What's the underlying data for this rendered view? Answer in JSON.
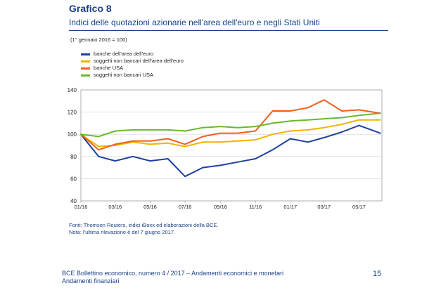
{
  "header": {
    "title": "Grafico 8",
    "subtitle": "Indici delle quotazioni azionarie nell'area dell'euro e negli Stati Uniti",
    "unit_note": "(1° gennaio 2016 = 100)"
  },
  "chart_data": {
    "type": "line",
    "x": [
      "2016-01-01",
      "2016-02-01",
      "2016-03-01",
      "2016-04-01",
      "2016-05-01",
      "2016-06-01",
      "2016-07-01",
      "2016-08-01",
      "2016-09-01",
      "2016-10-01",
      "2016-11-01",
      "2016-12-01",
      "2017-01-01",
      "2017-02-01",
      "2017-03-01",
      "2017-04-01",
      "2017-05-01",
      "2017-06-07"
    ],
    "x_tick_labels": [
      "01/16",
      "03/16",
      "05/16",
      "07/16",
      "09/16",
      "11/16",
      "01/17",
      "03/17",
      "05/17"
    ],
    "ylim": [
      40,
      140
    ],
    "y_ticks": [
      40,
      60,
      80,
      100,
      120,
      140
    ],
    "legend_position": "top-left",
    "series": [
      {
        "name": "banche dell'area dell'euro",
        "color": "#1f3fa0",
        "values": [
          100,
          80,
          76,
          80,
          76,
          78,
          62,
          70,
          72,
          75,
          78,
          86,
          96,
          93,
          97,
          102,
          108,
          101
        ]
      },
      {
        "name": "soggetti non bancari dell'area dell'euro",
        "color": "#f3b300",
        "values": [
          100,
          89,
          90,
          93,
          91,
          92,
          89,
          93,
          93,
          94,
          95,
          100,
          103,
          104,
          106,
          109,
          113,
          113
        ]
      },
      {
        "name": "banche USA",
        "color": "#f0601e",
        "values": [
          100,
          86,
          91,
          94,
          94,
          96,
          91,
          98,
          101,
          101,
          103,
          121,
          121,
          124,
          131,
          121,
          122,
          119
        ]
      },
      {
        "name": "soggetti non bancari USA",
        "color": "#68b82e",
        "values": [
          100,
          98,
          103,
          104,
          104,
          104,
          103,
          106,
          107,
          106,
          107,
          110,
          112,
          113,
          114,
          115,
          117,
          119
        ]
      }
    ]
  },
  "source": {
    "line1": "Fonti: Thomson Reuters, indici iBoxx ed elaborazioni della BCE.",
    "line2": "Nota: l'ultima rilevazione è del 7 giugno 2017."
  },
  "footer": {
    "line1": "BCE Bollettino economico, numero 4 / 2017 – Andamenti economici e monetari",
    "line2": "Andamenti finanziari",
    "page_number": "15"
  }
}
